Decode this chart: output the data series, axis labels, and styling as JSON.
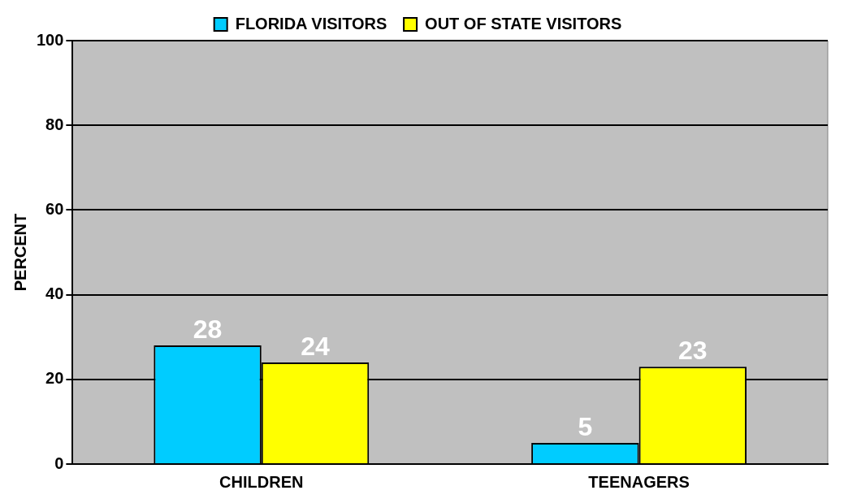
{
  "chart_data": {
    "type": "bar",
    "ylabel": "PERCENT",
    "categories": [
      "CHILDREN",
      "TEENAGERS"
    ],
    "series": [
      {
        "name": "FLORIDA VISITORS",
        "color": "#00ccff",
        "values": [
          28,
          5
        ]
      },
      {
        "name": "OUT OF STATE VISITORS",
        "color": "#ffff00",
        "values": [
          24,
          23
        ]
      }
    ],
    "ylim": [
      0,
      100
    ],
    "yticks": [
      0,
      20,
      40,
      60,
      80,
      100
    ],
    "grid": "y",
    "legend": "top",
    "data_labels": true
  }
}
